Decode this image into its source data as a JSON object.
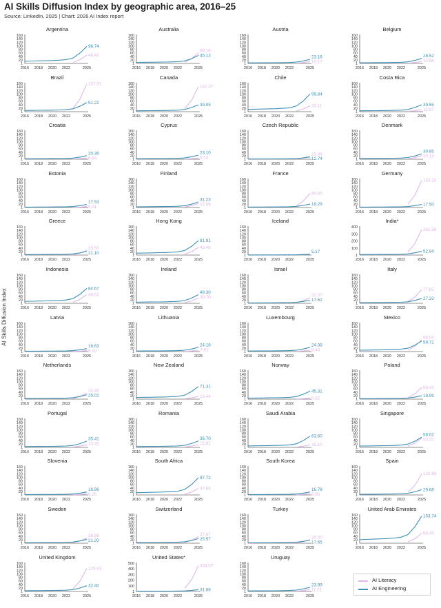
{
  "title": "AI Skills Diffusion Index by geographic area, 2016–25",
  "subtitle": "Source: LinkedIn, 2025 | Chart: 2026 AI Index report",
  "ylabel": "AI Skills Diffusion Index",
  "colors": {
    "engineering": "#3d8fb5",
    "literacy": "#e0b8e8",
    "axis": "#222222"
  },
  "legend": {
    "literacy": "AI Literacy",
    "engineering": "AI Engineering"
  },
  "chart_data": {
    "type": "line",
    "ylabel": "AI Skills Diffusion Index",
    "x_ticks": [
      "2016",
      "2018",
      "2020",
      "2022",
      "2025"
    ],
    "y_ticks_default": [
      "1",
      "20",
      "40",
      "60",
      "80",
      "100",
      "120",
      "140",
      "160"
    ],
    "series_names": [
      "AI Literacy",
      "AI Engineering"
    ],
    "panels": [
      {
        "name": "Argentina",
        "eng": 96.74,
        "lit": 46.42
      },
      {
        "name": "Australia",
        "eng": 45.12,
        "lit": 59.16
      },
      {
        "name": "Austria",
        "eng": 23.16,
        "lit": 10.17
      },
      {
        "name": "Belgium",
        "eng": 28.52,
        "lit": 10.86
      },
      {
        "name": "Brazil",
        "eng": 51.22,
        "lit": 157.31
      },
      {
        "name": "Canada",
        "eng": 39.05,
        "lit": 142.37
      },
      {
        "name": "Chile",
        "eng": 99.84,
        "lit": 33.11
      },
      {
        "name": "Costa Rica",
        "eng": 39.55,
        "lit": 11.87
      },
      {
        "name": "Croatia",
        "eng": 20.36,
        "lit": 6.64
      },
      {
        "name": "Cyprus",
        "eng": 23.1,
        "lit": 6.53
      },
      {
        "name": "Czech Republic",
        "eng": 12.74,
        "lit": 15.48
      },
      {
        "name": "Denmark",
        "eng": 30.85,
        "lit": 20.13
      },
      {
        "name": "Estonia",
        "eng": 17.53,
        "lit": 5.21
      },
      {
        "name": "Finland",
        "eng": 31.23,
        "lit": 22.59
      },
      {
        "name": "France",
        "eng": 19.29,
        "lit": 80.65
      },
      {
        "name": "Germany",
        "eng": 17.5,
        "lit": 153.2
      },
      {
        "name": "Greece",
        "eng": 21.1,
        "lit": 25.5
      },
      {
        "name": "Hong Kong",
        "eng": 81.91,
        "lit": 43.46
      },
      {
        "name": "Iceland",
        "eng": 5.17,
        "lit": 0.0
      },
      {
        "name": "India*",
        "eng": 52.94,
        "lit": 361.59,
        "ymax": 400,
        "yticks": [
          "1",
          "100",
          "200",
          "300",
          "400"
        ]
      },
      {
        "name": "Indonesia",
        "eng": 84.67,
        "lit": 49.53
      },
      {
        "name": "Ireland",
        "eng": 49.3,
        "lit": 30.7
      },
      {
        "name": "Israel",
        "eng": 17.62,
        "lit": 32.37
      },
      {
        "name": "Italy",
        "eng": 27.33,
        "lit": 77.85
      },
      {
        "name": "Latvia",
        "eng": 16.63,
        "lit": 6.2
      },
      {
        "name": "Lithuania",
        "eng": 24.18,
        "lit": 7.81
      },
      {
        "name": "Luxembourg",
        "eng": 24.38,
        "lit": 8.44
      },
      {
        "name": "Mexico",
        "eng": 59.71,
        "lit": 66.54
      },
      {
        "name": "Netherlands",
        "eng": 25.02,
        "lit": 34.46
      },
      {
        "name": "New Zealand",
        "eng": 71.31,
        "lit": 15.44
      },
      {
        "name": "Norway",
        "eng": 45.31,
        "lit": 5.82
      },
      {
        "name": "Poland",
        "eng": 18.99,
        "lit": 66.41
      },
      {
        "name": "Portugal",
        "eng": 35.41,
        "lit": 15.35
      },
      {
        "name": "Romania",
        "eng": 36.7,
        "lit": 15.82
      },
      {
        "name": "Saudi Arabia",
        "eng": 63.6,
        "lit": 15.1
      },
      {
        "name": "Singapore",
        "eng": 58.02,
        "lit": 53.37
      },
      {
        "name": "Slovenia",
        "eng": 16.96,
        "lit": 6.25
      },
      {
        "name": "South Africa",
        "eng": 97.72,
        "lit": 37.69
      },
      {
        "name": "South Korea",
        "eng": 16.78,
        "lit": 6.95
      },
      {
        "name": "Spain",
        "eng": 29.68,
        "lit": 120.68
      },
      {
        "name": "Sweden",
        "eng": 21.2,
        "lit": 28.88
      },
      {
        "name": "Switzerland",
        "eng": 25.57,
        "lit": 37.67
      },
      {
        "name": "Turkey",
        "eng": 17.65,
        "lit": 20.0
      },
      {
        "name": "United Arab Emirates",
        "eng": 153.74,
        "lit": 56.45
      },
      {
        "name": "United Kingdom",
        "eng": 32.4,
        "lit": 129.83
      },
      {
        "name": "United States*",
        "eng": 31.88,
        "lit": 458.07,
        "ymax": 500,
        "yticks": [
          "1",
          "100",
          "200",
          "300",
          "400",
          "500"
        ]
      },
      {
        "name": "Uruguay",
        "eng": 23.99,
        "lit": 11.21
      }
    ]
  }
}
